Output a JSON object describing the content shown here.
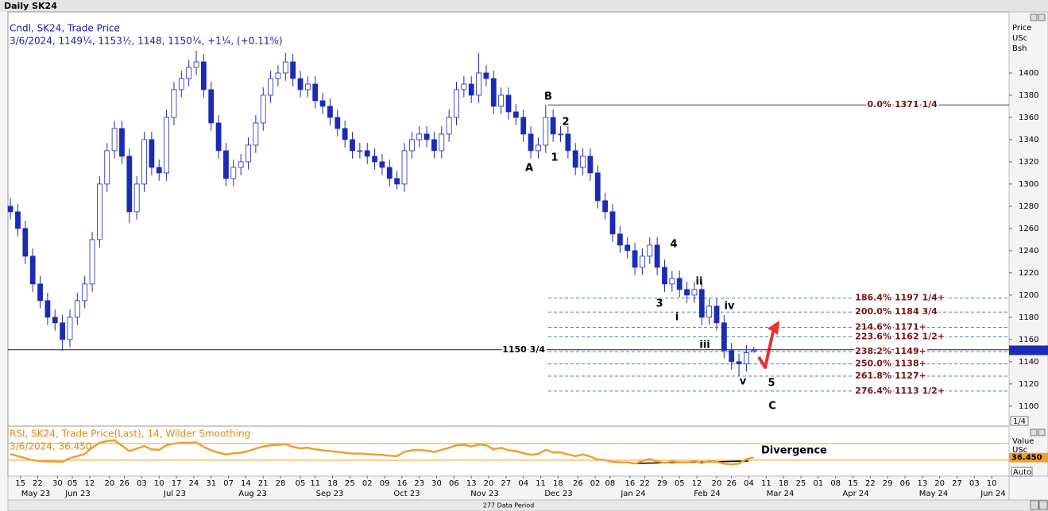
{
  "window_title": "Daily SK24",
  "chart_data": [
    {
      "type": "candlestick",
      "title": "Cndl, SK24, Trade Price",
      "subtitle": "3/6/2024, 1149¼, 1153½, 1148, 1150¼, +1¼, (+0.11%)",
      "axis_label": [
        "Price",
        "USc",
        "Bsh"
      ],
      "x": [
        "2023-05-11",
        "2023-05-14",
        "2023-05-17",
        "2023-05-20",
        "2023-05-23",
        "2023-05-26",
        "2023-05-29",
        "2023-06-01",
        "2023-06-04",
        "2023-06-07",
        "2023-06-10",
        "2023-06-13",
        "2023-06-16",
        "2023-06-19",
        "2023-06-22",
        "2023-06-25",
        "2023-06-28",
        "2023-07-01",
        "2023-07-04",
        "2023-07-07",
        "2023-07-10",
        "2023-07-13",
        "2023-07-16",
        "2023-07-19",
        "2023-07-22",
        "2023-07-25",
        "2023-07-28",
        "2023-07-31",
        "2023-08-03",
        "2023-08-06",
        "2023-08-09",
        "2023-08-12",
        "2023-08-15",
        "2023-08-18",
        "2023-08-21",
        "2023-08-24",
        "2023-08-27",
        "2023-08-30",
        "2023-09-02",
        "2023-09-05",
        "2023-09-08",
        "2023-09-11",
        "2023-09-14",
        "2023-09-17",
        "2023-09-20",
        "2023-09-23",
        "2023-09-26",
        "2023-09-29",
        "2023-10-02",
        "2023-10-05",
        "2023-10-08",
        "2023-10-11",
        "2023-10-14",
        "2023-10-17",
        "2023-10-20",
        "2023-10-23",
        "2023-10-26",
        "2023-10-29",
        "2023-11-01",
        "2023-11-04",
        "2023-11-07",
        "2023-11-10",
        "2023-11-13",
        "2023-11-16",
        "2023-11-19",
        "2023-11-22",
        "2023-11-25",
        "2023-11-28",
        "2023-12-01",
        "2023-12-04",
        "2023-12-07",
        "2023-12-10",
        "2023-12-13",
        "2023-12-16",
        "2023-12-19",
        "2023-12-22",
        "2023-12-25",
        "2023-12-28",
        "2023-12-31",
        "2024-01-03",
        "2024-01-06",
        "2024-01-09",
        "2024-01-12",
        "2024-01-15",
        "2024-01-18",
        "2024-01-21",
        "2024-01-24",
        "2024-01-27",
        "2024-01-30",
        "2024-02-02",
        "2024-02-05",
        "2024-02-08",
        "2024-02-11",
        "2024-02-14",
        "2024-02-17",
        "2024-02-20",
        "2024-02-23",
        "2024-02-26",
        "2024-02-29",
        "2024-03-03",
        "2024-03-06"
      ],
      "open": [
        1280,
        1275,
        1260,
        1235,
        1210,
        1195,
        1180,
        1175,
        1160,
        1180,
        1195,
        1210,
        1250,
        1300,
        1330,
        1350,
        1325,
        1275,
        1300,
        1340,
        1315,
        1310,
        1360,
        1385,
        1395,
        1405,
        1410,
        1385,
        1355,
        1330,
        1305,
        1315,
        1320,
        1335,
        1355,
        1380,
        1395,
        1400,
        1410,
        1395,
        1385,
        1390,
        1375,
        1370,
        1360,
        1350,
        1340,
        1330,
        1330,
        1325,
        1320,
        1315,
        1305,
        1300,
        1330,
        1340,
        1345,
        1340,
        1330,
        1345,
        1360,
        1385,
        1390,
        1380,
        1400,
        1395,
        1370,
        1380,
        1365,
        1360,
        1345,
        1330,
        1335,
        1360,
        1345,
        1345,
        1330,
        1315,
        1325,
        1310,
        1285,
        1275,
        1255,
        1245,
        1240,
        1225,
        1235,
        1245,
        1225,
        1210,
        1215,
        1205,
        1200,
        1205,
        1180,
        1190,
        1175,
        1150,
        1140,
        1138,
        1149.25
      ],
      "high": [
        1287,
        1282,
        1267,
        1242,
        1217,
        1202,
        1187,
        1182,
        1187,
        1202,
        1217,
        1257,
        1307,
        1337,
        1357,
        1357,
        1332,
        1307,
        1347,
        1347,
        1322,
        1367,
        1392,
        1402,
        1412,
        1420,
        1417,
        1392,
        1362,
        1337,
        1322,
        1327,
        1342,
        1362,
        1387,
        1402,
        1407,
        1418,
        1417,
        1402,
        1397,
        1397,
        1382,
        1377,
        1367,
        1357,
        1347,
        1337,
        1337,
        1332,
        1327,
        1322,
        1312,
        1337,
        1347,
        1352,
        1352,
        1347,
        1352,
        1367,
        1392,
        1397,
        1397,
        1418,
        1407,
        1402,
        1387,
        1387,
        1372,
        1367,
        1352,
        1342,
        1371.25,
        1367,
        1352,
        1352,
        1337,
        1332,
        1332,
        1317,
        1292,
        1282,
        1262,
        1252,
        1247,
        1242,
        1252,
        1252,
        1232,
        1222,
        1222,
        1212,
        1212,
        1212,
        1197,
        1197,
        1182,
        1157,
        1147,
        1155,
        1153.5
      ],
      "low": [
        1268,
        1253,
        1228,
        1203,
        1188,
        1173,
        1168,
        1150,
        1153,
        1173,
        1188,
        1203,
        1243,
        1293,
        1323,
        1318,
        1265,
        1268,
        1293,
        1308,
        1303,
        1303,
        1353,
        1378,
        1388,
        1398,
        1378,
        1348,
        1323,
        1298,
        1298,
        1308,
        1313,
        1328,
        1348,
        1373,
        1388,
        1393,
        1388,
        1378,
        1378,
        1368,
        1363,
        1353,
        1343,
        1333,
        1323,
        1323,
        1318,
        1313,
        1308,
        1298,
        1295,
        1293,
        1323,
        1333,
        1333,
        1323,
        1323,
        1338,
        1353,
        1378,
        1373,
        1373,
        1388,
        1363,
        1363,
        1358,
        1353,
        1338,
        1323,
        1323,
        1328,
        1338,
        1338,
        1323,
        1308,
        1308,
        1303,
        1278,
        1268,
        1248,
        1238,
        1233,
        1218,
        1218,
        1228,
        1218,
        1203,
        1203,
        1198,
        1193,
        1193,
        1173,
        1173,
        1168,
        1143,
        1133,
        1127,
        1131,
        1148
      ],
      "close": [
        1275,
        1260,
        1235,
        1210,
        1195,
        1180,
        1175,
        1160,
        1180,
        1195,
        1210,
        1250,
        1300,
        1330,
        1350,
        1325,
        1275,
        1300,
        1340,
        1315,
        1310,
        1360,
        1385,
        1395,
        1405,
        1410,
        1385,
        1355,
        1330,
        1305,
        1315,
        1320,
        1335,
        1355,
        1380,
        1395,
        1400,
        1410,
        1395,
        1385,
        1390,
        1375,
        1370,
        1360,
        1350,
        1340,
        1330,
        1330,
        1325,
        1320,
        1315,
        1305,
        1300,
        1330,
        1340,
        1345,
        1340,
        1330,
        1345,
        1360,
        1385,
        1390,
        1380,
        1400,
        1395,
        1370,
        1380,
        1365,
        1360,
        1345,
        1330,
        1335,
        1360,
        1345,
        1345,
        1330,
        1315,
        1325,
        1310,
        1285,
        1275,
        1255,
        1245,
        1240,
        1225,
        1235,
        1245,
        1225,
        1210,
        1215,
        1205,
        1200,
        1205,
        1180,
        1190,
        1175,
        1150,
        1140,
        1138,
        1148,
        1150.25
      ],
      "up_color": "#ffffff",
      "down_color": "#1c2bb4",
      "xlim": [
        "2023-05-10",
        "2024-06-17"
      ],
      "xticks": [
        {
          "value": "2023-05-15",
          "label": "15"
        },
        {
          "value": "2023-05-22",
          "label": "22"
        },
        {
          "value": "2023-05-30",
          "label": "30"
        },
        {
          "value": "2023-06-05",
          "label": "05"
        },
        {
          "value": "2023-06-12",
          "label": "12"
        },
        {
          "value": "2023-06-20",
          "label": "20"
        },
        {
          "value": "2023-06-26",
          "label": "26"
        },
        {
          "value": "2023-07-03",
          "label": "03"
        },
        {
          "value": "2023-07-10",
          "label": "10"
        },
        {
          "value": "2023-07-17",
          "label": "17"
        },
        {
          "value": "2023-07-24",
          "label": "24"
        },
        {
          "value": "2023-07-31",
          "label": "31"
        },
        {
          "value": "2023-08-07",
          "label": "07"
        },
        {
          "value": "2023-08-14",
          "label": "14"
        },
        {
          "value": "2023-08-21",
          "label": "21"
        },
        {
          "value": "2023-08-28",
          "label": "28"
        },
        {
          "value": "2023-09-05",
          "label": "05"
        },
        {
          "value": "2023-09-11",
          "label": "11"
        },
        {
          "value": "2023-09-18",
          "label": "18"
        },
        {
          "value": "2023-09-25",
          "label": "25"
        },
        {
          "value": "2023-10-02",
          "label": "02"
        },
        {
          "value": "2023-10-09",
          "label": "09"
        },
        {
          "value": "2023-10-16",
          "label": "16"
        },
        {
          "value": "2023-10-23",
          "label": "23"
        },
        {
          "value": "2023-10-30",
          "label": "30"
        },
        {
          "value": "2023-11-06",
          "label": "06"
        },
        {
          "value": "2023-11-13",
          "label": "13"
        },
        {
          "value": "2023-11-20",
          "label": "20"
        },
        {
          "value": "2023-11-27",
          "label": "27"
        },
        {
          "value": "2023-12-04",
          "label": "04"
        },
        {
          "value": "2023-12-11",
          "label": "11"
        },
        {
          "value": "2023-12-18",
          "label": "18"
        },
        {
          "value": "2023-12-26",
          "label": "26"
        },
        {
          "value": "2024-01-02",
          "label": "02"
        },
        {
          "value": "2024-01-08",
          "label": "08"
        },
        {
          "value": "2024-01-16",
          "label": "16"
        },
        {
          "value": "2024-01-22",
          "label": "22"
        },
        {
          "value": "2024-01-29",
          "label": "29"
        },
        {
          "value": "2024-02-05",
          "label": "05"
        },
        {
          "value": "2024-02-12",
          "label": "12"
        },
        {
          "value": "2024-02-20",
          "label": "20"
        },
        {
          "value": "2024-02-26",
          "label": "26"
        },
        {
          "value": "2024-03-04",
          "label": "04"
        },
        {
          "value": "2024-03-11",
          "label": "11"
        },
        {
          "value": "2024-03-18",
          "label": "18"
        },
        {
          "value": "2024-03-25",
          "label": "25"
        },
        {
          "value": "2024-04-01",
          "label": "01"
        },
        {
          "value": "2024-04-08",
          "label": "08"
        },
        {
          "value": "2024-04-15",
          "label": "15"
        },
        {
          "value": "2024-04-22",
          "label": "22"
        },
        {
          "value": "2024-04-29",
          "label": "29"
        },
        {
          "value": "2024-05-06",
          "label": "06"
        },
        {
          "value": "2024-05-13",
          "label": "13"
        },
        {
          "value": "2024-05-20",
          "label": "20"
        },
        {
          "value": "2024-05-27",
          "label": "27"
        },
        {
          "value": "2024-06-03",
          "label": "03"
        },
        {
          "value": "2024-06-10",
          "label": "10"
        }
      ],
      "month_labels": [
        "May 23",
        "Jun 23",
        "Jul 23",
        "Aug 23",
        "Sep 23",
        "Oct 23",
        "Nov 23",
        "Dec 23",
        "Jan 24",
        "Feb 24",
        "Mar 24",
        "Apr 24",
        "May 24",
        "Jun 24"
      ],
      "ylim": [
        1082,
        1455
      ],
      "yticks": [
        1100,
        1120,
        1140,
        1160,
        1180,
        1200,
        1220,
        1240,
        1260,
        1280,
        1300,
        1320,
        1340,
        1360,
        1380,
        1400
      ],
      "grid": false,
      "hline": {
        "value": 1150.75,
        "label": "1150 3/4"
      },
      "fib_levels": [
        {
          "name": "0.0%",
          "value": 1371.25,
          "value_label": "1371 1/4"
        },
        {
          "name": "186.4%",
          "value": 1197.25,
          "value_label": "1197 1/4+"
        },
        {
          "name": "200.0%",
          "value": 1184.75,
          "value_label": "1184 3/4"
        },
        {
          "name": "214.6%",
          "value": 1171,
          "value_label": "1171+"
        },
        {
          "name": "223.6%",
          "value": 1162.5,
          "value_label": "1162 1/2+"
        },
        {
          "name": "238.2%",
          "value": 1149,
          "value_label": "1149+"
        },
        {
          "name": "250.0%",
          "value": 1138,
          "value_label": "1138+"
        },
        {
          "name": "261.8%",
          "value": 1127,
          "value_label": "1127+"
        },
        {
          "name": "276.4%",
          "value": 1113.5,
          "value_label": "1113 1/2+"
        }
      ],
      "wave_labels": [
        "A",
        "B",
        "1",
        "2",
        "3",
        "4",
        "i",
        "ii",
        "iii",
        "iv",
        "v",
        "5",
        "C"
      ],
      "scale_note": "1/4"
    },
    {
      "type": "line",
      "title": "RSI, SK24, Trade Price(Last),  14, Wilder Smoothing",
      "subtitle": "3/6/2024, 36.450",
      "axis_label": [
        "Value",
        "USc",
        "Bsh"
      ],
      "values": [
        45,
        40,
        35,
        30,
        28,
        27,
        27,
        26,
        35,
        40,
        45,
        60,
        72,
        76,
        78,
        65,
        52,
        58,
        64,
        56,
        55,
        66,
        70,
        72,
        72,
        73,
        62,
        54,
        48,
        44,
        47,
        48,
        52,
        58,
        63,
        66,
        67,
        69,
        62,
        59,
        60,
        56,
        54,
        52,
        50,
        48,
        46,
        46,
        45,
        44,
        43,
        41,
        40,
        50,
        54,
        55,
        53,
        50,
        55,
        60,
        66,
        67,
        63,
        68,
        66,
        56,
        60,
        54,
        52,
        47,
        43,
        45,
        55,
        49,
        49,
        44,
        40,
        44,
        39,
        32,
        30,
        26,
        25,
        25,
        22,
        28,
        33,
        27,
        24,
        27,
        25,
        25,
        28,
        23,
        28,
        26,
        22,
        20,
        22,
        33,
        36.45
      ],
      "value_label": "36.450",
      "color": "#f0a030",
      "ylim": [
        -8,
        112
      ],
      "levels": [
        30,
        70
      ],
      "annotation": "Divergence",
      "scale_mode": "Auto"
    }
  ],
  "footer": "277 Data Period"
}
